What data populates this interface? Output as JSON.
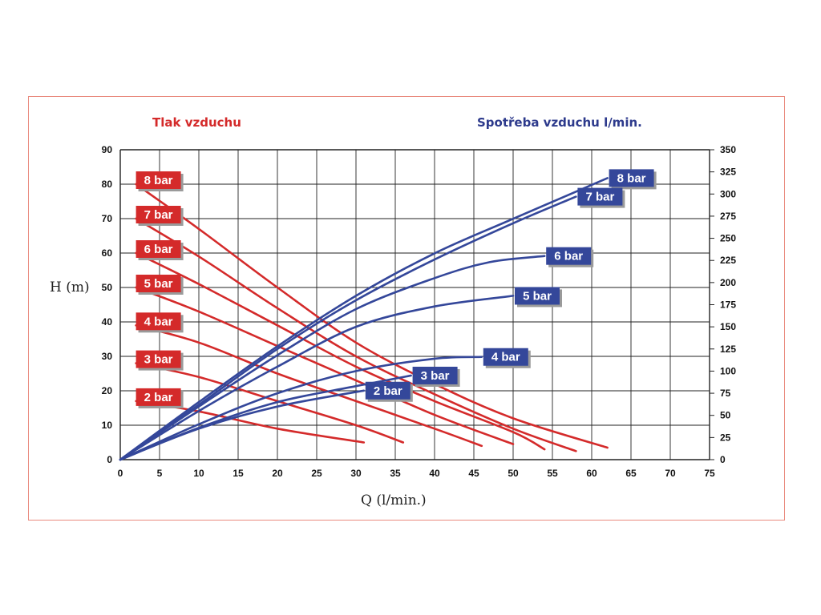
{
  "chart_data": {
    "type": "line",
    "left_title": "Tlak vzduchu",
    "right_title": "Spotřeba vzduchu l/min.",
    "xlabel": "Q (l/min.)",
    "ylabel": "H (m)",
    "xlim": [
      0,
      75
    ],
    "ylim": [
      0,
      90
    ],
    "y2lim": [
      0,
      350
    ],
    "xticks": [
      "0",
      "5",
      "10",
      "15",
      "20",
      "25",
      "30",
      "35",
      "40",
      "45",
      "50",
      "55",
      "60",
      "65",
      "70",
      "75"
    ],
    "yticks": [
      "0",
      "10",
      "20",
      "30",
      "40",
      "50",
      "60",
      "70",
      "80",
      "90"
    ],
    "y2ticks": [
      "0",
      "25",
      "50",
      "75",
      "100",
      "125",
      "150",
      "175",
      "200",
      "225",
      "250",
      "275",
      "300",
      "325",
      "350"
    ],
    "grid": true,
    "colors": {
      "head": "#d42a2a",
      "air": "#34479a",
      "frame": "#e98a7e"
    },
    "head_series": [
      {
        "name": "8 bar",
        "points": [
          [
            2,
            80
          ],
          [
            10,
            67
          ],
          [
            20,
            50
          ],
          [
            30,
            34
          ],
          [
            40,
            22
          ],
          [
            50,
            12
          ],
          [
            62,
            3.5
          ]
        ]
      },
      {
        "name": "7 bar",
        "points": [
          [
            2,
            70
          ],
          [
            10,
            59
          ],
          [
            20,
            44
          ],
          [
            30,
            30
          ],
          [
            40,
            19
          ],
          [
            50,
            9
          ],
          [
            58,
            2.5
          ]
        ]
      },
      {
        "name": "6 bar",
        "points": [
          [
            2,
            60
          ],
          [
            10,
            51
          ],
          [
            20,
            39
          ],
          [
            30,
            27
          ],
          [
            40,
            17
          ],
          [
            50,
            8
          ],
          [
            54,
            3
          ]
        ]
      },
      {
        "name": "5 bar",
        "points": [
          [
            2,
            50
          ],
          [
            10,
            43
          ],
          [
            20,
            33
          ],
          [
            30,
            23
          ],
          [
            40,
            13
          ],
          [
            50,
            4.5
          ]
        ]
      },
      {
        "name": "4 bar",
        "points": [
          [
            2,
            39
          ],
          [
            10,
            34
          ],
          [
            20,
            25
          ],
          [
            30,
            17
          ],
          [
            40,
            9
          ],
          [
            46,
            4
          ]
        ]
      },
      {
        "name": "3 bar",
        "points": [
          [
            2,
            28
          ],
          [
            10,
            24
          ],
          [
            20,
            17
          ],
          [
            30,
            10
          ],
          [
            36,
            5
          ]
        ]
      },
      {
        "name": "2 bar",
        "points": [
          [
            2,
            17
          ],
          [
            10,
            14
          ],
          [
            20,
            9
          ],
          [
            31,
            5
          ]
        ]
      }
    ],
    "air_series": [
      {
        "name": "8 bar",
        "points": [
          [
            0,
            0
          ],
          [
            10,
            65
          ],
          [
            20,
            128
          ],
          [
            30,
            185
          ],
          [
            40,
            233
          ],
          [
            50,
            272
          ],
          [
            62,
            318
          ]
        ]
      },
      {
        "name": "7 bar",
        "points": [
          [
            0,
            0
          ],
          [
            10,
            62
          ],
          [
            20,
            125
          ],
          [
            30,
            180
          ],
          [
            40,
            226
          ],
          [
            50,
            267
          ],
          [
            58,
            297
          ]
        ]
      },
      {
        "name": "6 bar",
        "points": [
          [
            0,
            0
          ],
          [
            10,
            60
          ],
          [
            20,
            118
          ],
          [
            30,
            170
          ],
          [
            40,
            205
          ],
          [
            47,
            223
          ],
          [
            54,
            230
          ]
        ]
      },
      {
        "name": "5 bar",
        "points": [
          [
            0,
            0
          ],
          [
            10,
            55
          ],
          [
            20,
            105
          ],
          [
            30,
            150
          ],
          [
            40,
            173
          ],
          [
            50,
            185
          ]
        ]
      },
      {
        "name": "4 bar",
        "points": [
          [
            0,
            0
          ],
          [
            10,
            40
          ],
          [
            20,
            75
          ],
          [
            30,
            100
          ],
          [
            40,
            114
          ],
          [
            46,
            116
          ]
        ]
      },
      {
        "name": "3 bar",
        "points": [
          [
            0,
            0
          ],
          [
            10,
            36
          ],
          [
            20,
            65
          ],
          [
            30,
            83
          ],
          [
            37,
            95
          ]
        ]
      },
      {
        "name": "2 bar",
        "points": [
          [
            0,
            0
          ],
          [
            10,
            35
          ],
          [
            20,
            60
          ],
          [
            31,
            78
          ]
        ]
      }
    ]
  }
}
